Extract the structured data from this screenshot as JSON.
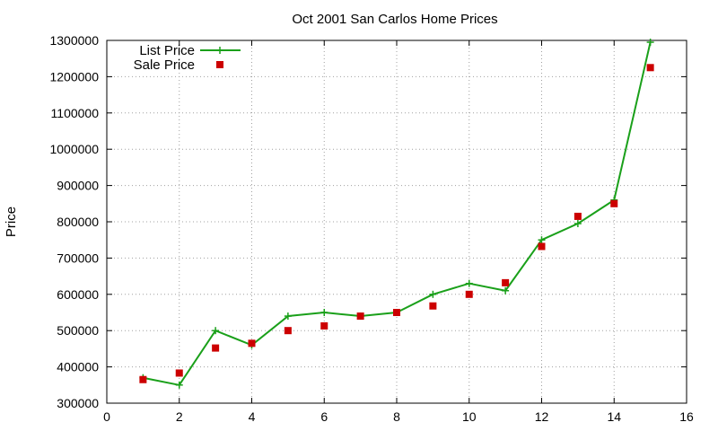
{
  "chart_data": {
    "type": "line",
    "title": "Oct 2001 San Carlos Home Prices",
    "xlabel": "",
    "ylabel": "Price",
    "xlim": [
      0,
      16
    ],
    "ylim": [
      300000,
      1300000
    ],
    "x_ticks": [
      "0",
      "2",
      "4",
      "6",
      "8",
      "10",
      "12",
      "14",
      "16"
    ],
    "y_ticks": [
      "300000",
      "400000",
      "500000",
      "600000",
      "700000",
      "800000",
      "900000",
      "1000000",
      "1100000",
      "1200000",
      "1300000"
    ],
    "grid": true,
    "legend_position": "top-left",
    "series": [
      {
        "name": "List Price",
        "style": "linespoints",
        "marker": "plus",
        "color": "#1aa01a",
        "x": [
          1,
          2,
          3,
          4,
          5,
          6,
          7,
          8,
          9,
          10,
          11,
          12,
          13,
          14,
          15
        ],
        "y": [
          370000,
          350000,
          500000,
          460000,
          540000,
          550000,
          540000,
          550000,
          600000,
          630000,
          610000,
          750000,
          795000,
          860000,
          1295000
        ]
      },
      {
        "name": "Sale Price",
        "style": "points",
        "marker": "square",
        "color": "#cc0000",
        "x": [
          1,
          2,
          3,
          4,
          5,
          6,
          7,
          8,
          9,
          10,
          11,
          12,
          13,
          14,
          15
        ],
        "y": [
          365000,
          383000,
          452000,
          465000,
          500000,
          513000,
          540000,
          550000,
          568000,
          600000,
          632000,
          732000,
          815000,
          850000,
          1225000
        ]
      }
    ]
  }
}
